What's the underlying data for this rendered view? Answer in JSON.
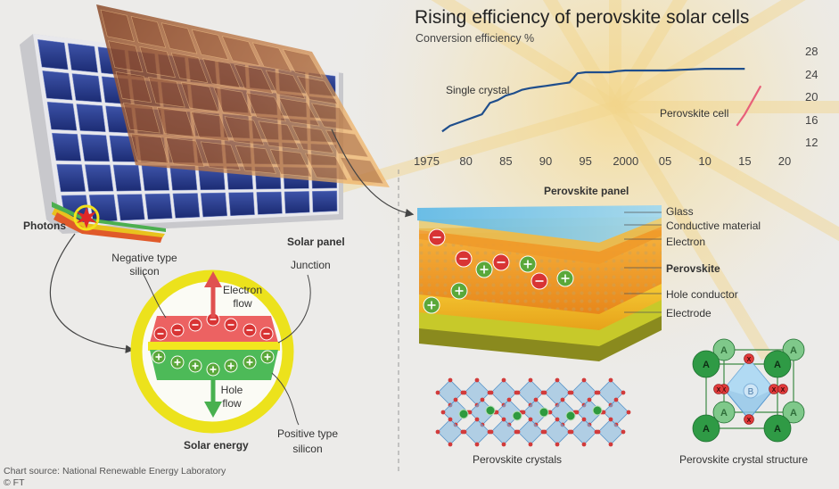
{
  "chart_data": {
    "type": "line",
    "title": "Rising efficiency of perovskite solar cells",
    "ylabel": "Conversion efficiency %",
    "x_ticks": [
      "1975",
      "80",
      "85",
      "90",
      "95",
      "2000",
      "05",
      "10",
      "15",
      "20"
    ],
    "y_ticks": [
      "28",
      "24",
      "20",
      "16",
      "12"
    ],
    "xlim": [
      1975,
      2020
    ],
    "ylim": [
      12,
      28
    ],
    "series": [
      {
        "name": "Single crystal",
        "color": "#1f4e8c",
        "x": [
          1977,
          1978,
          1980,
          1981,
          1982,
          1983,
          1984,
          1985,
          1986,
          1987,
          1988,
          1989,
          1990,
          1991,
          1992,
          1993,
          1994,
          1995,
          1996,
          1997,
          1998,
          1999,
          2000,
          2005,
          2010,
          2015
        ],
        "y": [
          14.0,
          15.0,
          16.0,
          16.5,
          17.0,
          19.0,
          19.5,
          20.3,
          20.7,
          21.3,
          21.6,
          21.8,
          22.0,
          22.2,
          22.4,
          22.6,
          24.2,
          24.4,
          24.4,
          24.4,
          24.4,
          24.6,
          24.7,
          24.7,
          25.0,
          25.0
        ]
      },
      {
        "name": "Perovskite cell",
        "color": "#e8607a",
        "x": [
          2014,
          2015,
          2016,
          2017
        ],
        "y": [
          15.0,
          17.0,
          19.5,
          22.0
        ]
      }
    ],
    "grid": false
  },
  "labels": {
    "photons": "Photons",
    "solar_panel": "Solar panel",
    "negative_type": [
      "Negative type",
      "silicon"
    ],
    "junction": "Junction",
    "electron_flow": [
      "Electron",
      "flow"
    ],
    "hole_flow": [
      "Hole",
      "flow"
    ],
    "positive_type": [
      "Positive type",
      "silicon"
    ],
    "solar_energy": "Solar energy",
    "perovskite_panel": "Perovskite panel",
    "glass": "Glass",
    "conductive_material": "Conductive material",
    "electron": "Electron",
    "perovskite": "Perovskite",
    "hole_conductor": "Hole conductor",
    "electrode": "Electrode",
    "perovskite_crystals": "Perovskite crystals",
    "perovskite_crystal_structure": "Perovskite crystal structure",
    "atom_a": "A",
    "atom_b": "B",
    "atom_x": "X"
  },
  "footer": {
    "source": "Chart source: National Renewable Energy Laboratory",
    "credit": "© FT"
  }
}
